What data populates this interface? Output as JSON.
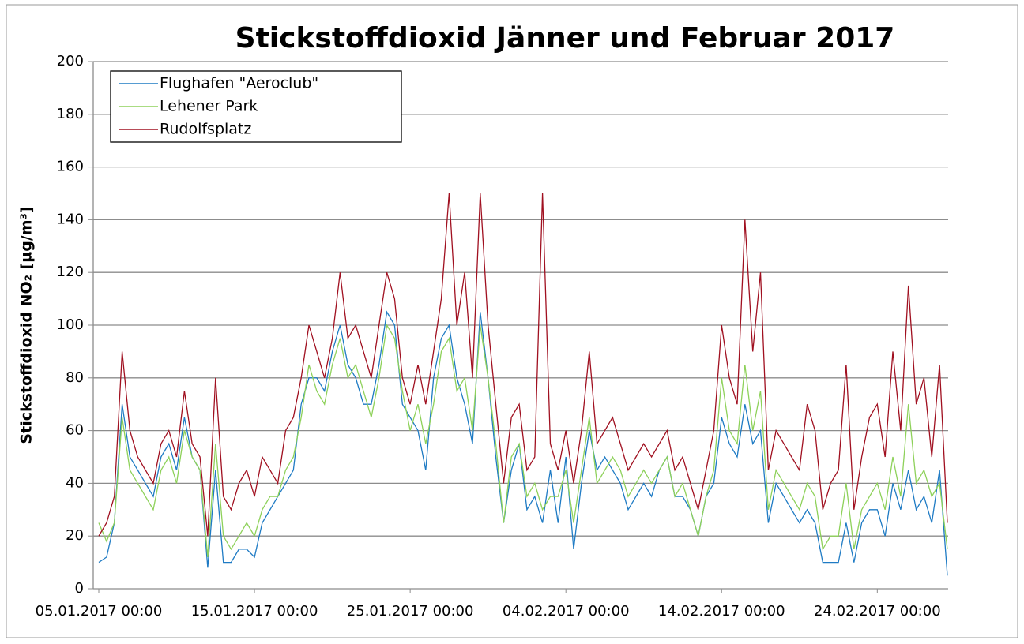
{
  "chart_data": {
    "type": "line",
    "title": "Stickstoffdioxid Jänner und Februar 2017",
    "y_label": "Stickstoffdioxid NO₂ [µg/m³]",
    "ylim": [
      0,
      200
    ],
    "yticks": [
      0,
      20,
      40,
      60,
      80,
      100,
      120,
      140,
      160,
      180,
      200
    ],
    "grid": true,
    "legend": "upper left",
    "xlim": [
      "05.01.2017 00:00",
      "28.02.2017 12:00"
    ],
    "xticks": [
      "05.01.2017 00:00",
      "15.01.2017 00:00",
      "25.01.2017 00:00",
      "04.02.2017 00:00",
      "14.02.2017 00:00",
      "24.02.2017 00:00"
    ],
    "x": [
      "05.01.2017 00:00",
      "05.01.2017 12:00",
      "06.01.2017 00:00",
      "06.01.2017 12:00",
      "07.01.2017 00:00",
      "07.01.2017 12:00",
      "08.01.2017 00:00",
      "08.01.2017 12:00",
      "09.01.2017 00:00",
      "09.01.2017 12:00",
      "10.01.2017 00:00",
      "10.01.2017 12:00",
      "11.01.2017 00:00",
      "11.01.2017 12:00",
      "12.01.2017 00:00",
      "12.01.2017 12:00",
      "13.01.2017 00:00",
      "13.01.2017 12:00",
      "14.01.2017 00:00",
      "14.01.2017 12:00",
      "15.01.2017 00:00",
      "15.01.2017 12:00",
      "16.01.2017 00:00",
      "16.01.2017 12:00",
      "17.01.2017 00:00",
      "17.01.2017 12:00",
      "18.01.2017 00:00",
      "18.01.2017 12:00",
      "19.01.2017 00:00",
      "19.01.2017 12:00",
      "20.01.2017 00:00",
      "20.01.2017 12:00",
      "21.01.2017 00:00",
      "21.01.2017 12:00",
      "22.01.2017 00:00",
      "22.01.2017 12:00",
      "23.01.2017 00:00",
      "23.01.2017 12:00",
      "24.01.2017 00:00",
      "24.01.2017 12:00",
      "25.01.2017 00:00",
      "25.01.2017 12:00",
      "26.01.2017 00:00",
      "26.01.2017 12:00",
      "27.01.2017 00:00",
      "27.01.2017 12:00",
      "28.01.2017 00:00",
      "28.01.2017 12:00",
      "29.01.2017 00:00",
      "29.01.2017 12:00",
      "30.01.2017 00:00",
      "30.01.2017 12:00",
      "31.01.2017 00:00",
      "31.01.2017 12:00",
      "01.02.2017 00:00",
      "01.02.2017 12:00",
      "02.02.2017 00:00",
      "02.02.2017 12:00",
      "03.02.2017 00:00",
      "03.02.2017 12:00",
      "04.02.2017 00:00",
      "04.02.2017 12:00",
      "05.02.2017 00:00",
      "05.02.2017 12:00",
      "06.02.2017 00:00",
      "06.02.2017 12:00",
      "07.02.2017 00:00",
      "07.02.2017 12:00",
      "08.02.2017 00:00",
      "08.02.2017 12:00",
      "09.02.2017 00:00",
      "09.02.2017 12:00",
      "10.02.2017 00:00",
      "10.02.2017 12:00",
      "11.02.2017 00:00",
      "11.02.2017 12:00",
      "12.02.2017 00:00",
      "12.02.2017 12:00",
      "13.02.2017 00:00",
      "13.02.2017 12:00",
      "14.02.2017 00:00",
      "14.02.2017 12:00",
      "15.02.2017 00:00",
      "15.02.2017 12:00",
      "16.02.2017 00:00",
      "16.02.2017 12:00",
      "17.02.2017 00:00",
      "17.02.2017 12:00",
      "18.02.2017 00:00",
      "18.02.2017 12:00",
      "19.02.2017 00:00",
      "19.02.2017 12:00",
      "20.02.2017 00:00",
      "20.02.2017 12:00",
      "21.02.2017 00:00",
      "21.02.2017 12:00",
      "22.02.2017 00:00",
      "22.02.2017 12:00",
      "23.02.2017 00:00",
      "23.02.2017 12:00",
      "24.02.2017 00:00",
      "24.02.2017 12:00",
      "25.02.2017 00:00",
      "25.02.2017 12:00",
      "26.02.2017 00:00",
      "26.02.2017 12:00",
      "27.02.2017 00:00",
      "27.02.2017 12:00",
      "28.02.2017 00:00",
      "28.02.2017 12:00"
    ],
    "series": [
      {
        "name": "Flughafen \"Aeroclub\"",
        "color": "#1f7bc4",
        "values": [
          10,
          12,
          25,
          70,
          50,
          45,
          40,
          35,
          50,
          55,
          45,
          65,
          50,
          45,
          8,
          45,
          10,
          10,
          15,
          15,
          12,
          25,
          30,
          35,
          40,
          45,
          70,
          80,
          80,
          75,
          90,
          100,
          85,
          80,
          70,
          70,
          85,
          105,
          100,
          70,
          65,
          60,
          45,
          80,
          95,
          100,
          80,
          70,
          55,
          105,
          80,
          50,
          25,
          45,
          55,
          30,
          35,
          25,
          45,
          25,
          50,
          15,
          40,
          60,
          45,
          50,
          45,
          40,
          30,
          35,
          40,
          35,
          45,
          50,
          35,
          35,
          30,
          20,
          35,
          40,
          65,
          55,
          50,
          70,
          55,
          60,
          25,
          40,
          35,
          30,
          25,
          30,
          25,
          10,
          10,
          10,
          25,
          10,
          25,
          30,
          30,
          20,
          40,
          30,
          45,
          30,
          35,
          25,
          45,
          5
        ]
      },
      {
        "name": "Lehener Park",
        "color": "#8ed15a",
        "values": [
          25,
          18,
          25,
          65,
          45,
          40,
          35,
          30,
          45,
          50,
          40,
          60,
          50,
          45,
          12,
          55,
          20,
          15,
          20,
          25,
          20,
          30,
          35,
          35,
          45,
          50,
          65,
          85,
          75,
          70,
          85,
          95,
          80,
          85,
          75,
          65,
          80,
          100,
          95,
          75,
          60,
          70,
          55,
          70,
          90,
          95,
          75,
          80,
          60,
          100,
          80,
          55,
          25,
          50,
          55,
          35,
          40,
          30,
          35,
          35,
          45,
          25,
          45,
          65,
          40,
          45,
          50,
          45,
          35,
          40,
          45,
          40,
          45,
          50,
          35,
          40,
          30,
          20,
          35,
          45,
          80,
          60,
          55,
          85,
          60,
          75,
          30,
          45,
          40,
          35,
          30,
          40,
          35,
          15,
          20,
          20,
          40,
          15,
          30,
          35,
          40,
          30,
          50,
          35,
          70,
          40,
          45,
          35,
          40,
          15
        ]
      },
      {
        "name": "Rudolfsplatz",
        "color": "#a01020",
        "values": [
          20,
          25,
          35,
          90,
          60,
          50,
          45,
          40,
          55,
          60,
          50,
          75,
          55,
          50,
          20,
          80,
          35,
          30,
          40,
          45,
          35,
          50,
          45,
          40,
          60,
          65,
          80,
          100,
          90,
          80,
          95,
          120,
          95,
          100,
          90,
          80,
          100,
          120,
          110,
          80,
          70,
          85,
          70,
          90,
          110,
          150,
          100,
          120,
          80,
          150,
          100,
          70,
          40,
          65,
          70,
          45,
          50,
          150,
          55,
          45,
          60,
          40,
          60,
          90,
          55,
          60,
          65,
          55,
          45,
          50,
          55,
          50,
          55,
          60,
          45,
          50,
          40,
          30,
          45,
          60,
          100,
          80,
          70,
          140,
          90,
          120,
          45,
          60,
          55,
          50,
          45,
          70,
          60,
          30,
          40,
          45,
          85,
          30,
          50,
          65,
          70,
          50,
          90,
          60,
          115,
          70,
          80,
          50,
          85,
          25
        ]
      }
    ]
  }
}
